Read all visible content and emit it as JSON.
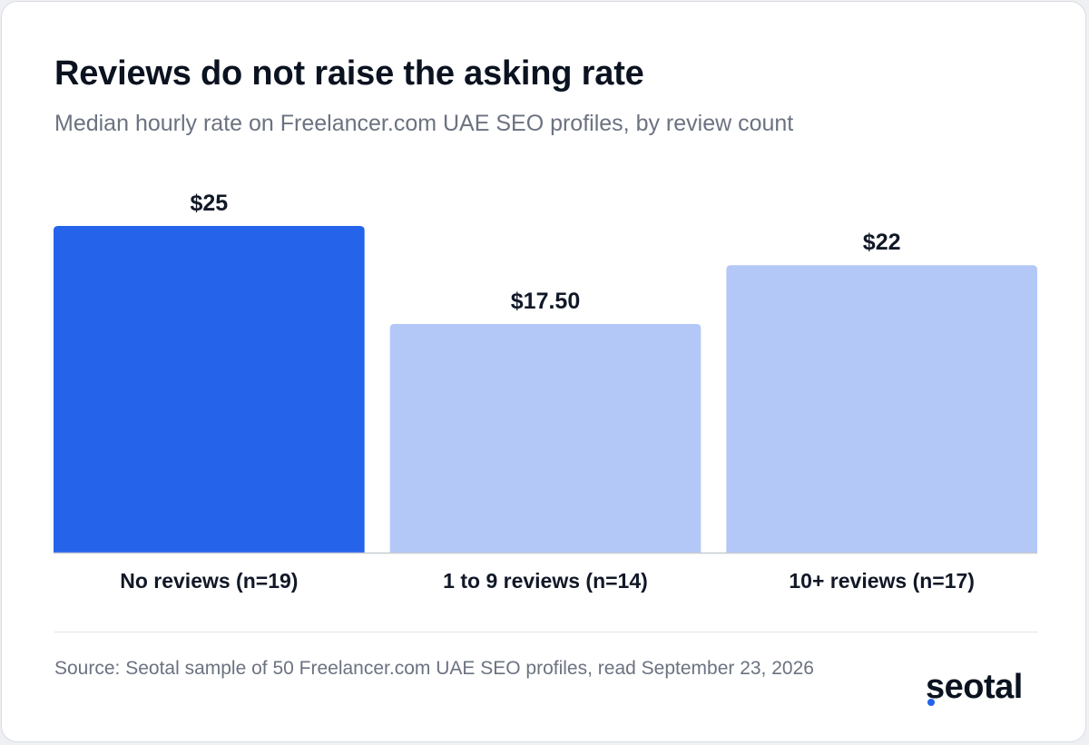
{
  "colors": {
    "highlight": "#2563eb",
    "muted": "#b3c8f7",
    "axis": "#c8ccd2",
    "logo_accent": "#2563eb"
  },
  "chart_data": {
    "type": "bar",
    "title": "Reviews do not raise the asking rate",
    "subtitle": "Median hourly rate on Freelancer.com UAE SEO profiles, by review count",
    "categories": [
      "No reviews (n=19)",
      "1 to 9 reviews (n=14)",
      "10+ reviews (n=17)"
    ],
    "values": [
      25,
      17.5,
      22
    ],
    "value_labels": [
      "$25",
      "$17.50",
      "$22"
    ],
    "highlight_index": 0,
    "ylim": [
      0,
      25
    ],
    "grid": false,
    "legend": "none"
  },
  "footer": {
    "source": "Source: Seotal sample of 50 Freelancer.com UAE SEO profiles, read September 23, 2026",
    "brand": "seotal"
  }
}
